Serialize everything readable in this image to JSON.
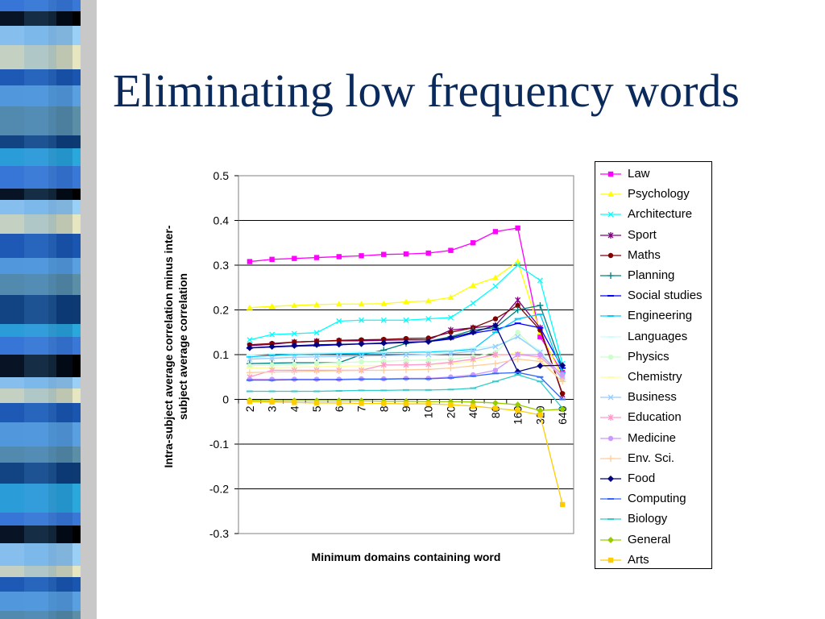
{
  "slide": {
    "title": "Eliminating low frequency words"
  },
  "chart_data": {
    "type": "line",
    "title": "",
    "xlabel": "Minimum domains containing word",
    "ylabel": "Intra-subject average correlation minus inter-subject average correlation",
    "ylabel_lines": [
      "Intra-subject average correlation minus inter-",
      "subject average correlation"
    ],
    "categories": [
      "2",
      "3",
      "4",
      "5",
      "6",
      "7",
      "8",
      "9",
      "10",
      "20",
      "40",
      "80",
      "160",
      "320",
      "640"
    ],
    "ylim": [
      -0.3,
      0.5
    ],
    "yticks": [
      0.5,
      0.4,
      0.3,
      0.2,
      0.1,
      0,
      -0.1,
      -0.2,
      -0.3
    ],
    "grid": "horizontal",
    "legend_position": "right",
    "series": [
      {
        "name": "Law",
        "color": "#ff00ff",
        "marker": "square",
        "values": [
          0.308,
          0.313,
          0.315,
          0.317,
          0.319,
          0.321,
          0.324,
          0.325,
          0.327,
          0.333,
          0.35,
          0.375,
          0.383,
          0.14,
          0.06
        ]
      },
      {
        "name": "Psychology",
        "color": "#ffff00",
        "marker": "triangle",
        "values": [
          0.205,
          0.208,
          0.21,
          0.212,
          0.213,
          0.213,
          0.214,
          0.218,
          0.22,
          0.228,
          0.255,
          0.272,
          0.308,
          0.15,
          0.05
        ]
      },
      {
        "name": "Architecture",
        "color": "#00ffff",
        "marker": "x",
        "values": [
          0.133,
          0.145,
          0.147,
          0.149,
          0.175,
          0.177,
          0.177,
          0.177,
          0.18,
          0.183,
          0.215,
          0.253,
          0.3,
          0.266,
          0.08
        ]
      },
      {
        "name": "Sport",
        "color": "#800080",
        "marker": "star",
        "values": [
          0.12,
          0.123,
          0.128,
          0.13,
          0.131,
          0.131,
          0.132,
          0.133,
          0.133,
          0.155,
          0.16,
          0.165,
          0.222,
          0.16,
          0.01
        ]
      },
      {
        "name": "Maths",
        "color": "#800000",
        "marker": "circle",
        "values": [
          0.122,
          0.125,
          0.128,
          0.13,
          0.132,
          0.133,
          0.134,
          0.136,
          0.137,
          0.15,
          0.16,
          0.18,
          0.21,
          0.155,
          0.013
        ]
      },
      {
        "name": "Planning",
        "color": "#008080",
        "marker": "plus",
        "values": [
          0.08,
          0.081,
          0.082,
          0.082,
          0.082,
          0.1,
          0.11,
          0.125,
          0.13,
          0.14,
          0.155,
          0.16,
          0.2,
          0.21,
          0.07
        ]
      },
      {
        "name": "Social studies",
        "color": "#0000ff",
        "marker": "dash",
        "values": [
          0.115,
          0.117,
          0.119,
          0.12,
          0.122,
          0.124,
          0.125,
          0.127,
          0.129,
          0.135,
          0.148,
          0.156,
          0.17,
          0.16,
          0.07
        ]
      },
      {
        "name": "Engineering",
        "color": "#00ccff",
        "marker": "dash",
        "values": [
          0.095,
          0.098,
          0.1,
          0.101,
          0.102,
          0.103,
          0.104,
          0.105,
          0.106,
          0.108,
          0.112,
          0.15,
          0.18,
          0.19,
          0.06
        ]
      },
      {
        "name": "Languages",
        "color": "#ccffff",
        "marker": "dash",
        "values": [
          0.1,
          0.102,
          0.103,
          0.104,
          0.105,
          0.106,
          0.106,
          0.107,
          0.108,
          0.11,
          0.115,
          0.12,
          0.14,
          0.11,
          0.05
        ]
      },
      {
        "name": "Physics",
        "color": "#ccffcc",
        "marker": "circle",
        "values": [
          0.075,
          0.077,
          0.078,
          0.08,
          0.082,
          0.084,
          0.085,
          0.087,
          0.088,
          0.09,
          0.095,
          0.105,
          0.15,
          0.1,
          0.05
        ]
      },
      {
        "name": "Chemistry",
        "color": "#ffff99",
        "marker": "dash",
        "values": [
          0.07,
          0.071,
          0.072,
          0.073,
          0.074,
          0.075,
          0.076,
          0.077,
          0.078,
          0.08,
          0.085,
          0.095,
          0.105,
          0.09,
          0.04
        ]
      },
      {
        "name": "Business",
        "color": "#99ccff",
        "marker": "x",
        "values": [
          0.09,
          0.092,
          0.094,
          0.095,
          0.096,
          0.097,
          0.098,
          0.099,
          0.1,
          0.102,
          0.108,
          0.118,
          0.14,
          0.105,
          0.045
        ]
      },
      {
        "name": "Education",
        "color": "#ff99cc",
        "marker": "star",
        "values": [
          0.05,
          0.065,
          0.065,
          0.065,
          0.065,
          0.065,
          0.077,
          0.077,
          0.078,
          0.083,
          0.09,
          0.1,
          0.1,
          0.095,
          0.05
        ]
      },
      {
        "name": "Medicine",
        "color": "#cc99ff",
        "marker": "circle",
        "values": [
          0.045,
          0.045,
          0.045,
          0.045,
          0.045,
          0.046,
          0.046,
          0.047,
          0.047,
          0.05,
          0.055,
          0.065,
          0.1,
          0.1,
          0.055
        ]
      },
      {
        "name": "Env. Sci.",
        "color": "#ffcc99",
        "marker": "plus",
        "values": [
          0.06,
          0.061,
          0.062,
          0.063,
          0.064,
          0.065,
          0.065,
          0.066,
          0.067,
          0.07,
          0.075,
          0.08,
          0.09,
          0.085,
          0.04
        ]
      },
      {
        "name": "Food",
        "color": "#000080",
        "marker": "diamond",
        "values": [
          0.115,
          0.118,
          0.12,
          0.122,
          0.123,
          0.124,
          0.126,
          0.128,
          0.129,
          0.138,
          0.15,
          0.165,
          0.062,
          0.075,
          0.076
        ]
      },
      {
        "name": "Computing",
        "color": "#3366ff",
        "marker": "dash",
        "values": [
          0.043,
          0.043,
          0.044,
          0.044,
          0.044,
          0.045,
          0.045,
          0.046,
          0.046,
          0.048,
          0.052,
          0.058,
          0.06,
          0.05,
          0.0
        ]
      },
      {
        "name": "Biology",
        "color": "#33cccc",
        "marker": "dash",
        "values": [
          0.018,
          0.018,
          0.018,
          0.018,
          0.019,
          0.02,
          0.02,
          0.021,
          0.021,
          0.022,
          0.025,
          0.04,
          0.055,
          0.04,
          -0.02
        ]
      },
      {
        "name": "General",
        "color": "#99cc00",
        "marker": "diamond",
        "values": [
          -0.002,
          -0.003,
          -0.003,
          -0.003,
          -0.003,
          -0.003,
          -0.004,
          -0.004,
          -0.005,
          -0.005,
          -0.006,
          -0.008,
          -0.012,
          -0.025,
          -0.022
        ]
      },
      {
        "name": "Arts",
        "color": "#ffcc00",
        "marker": "square",
        "values": [
          -0.005,
          -0.006,
          -0.007,
          -0.008,
          -0.008,
          -0.009,
          -0.009,
          -0.01,
          -0.01,
          -0.012,
          -0.015,
          -0.02,
          -0.025,
          -0.035,
          -0.235
        ]
      }
    ]
  }
}
